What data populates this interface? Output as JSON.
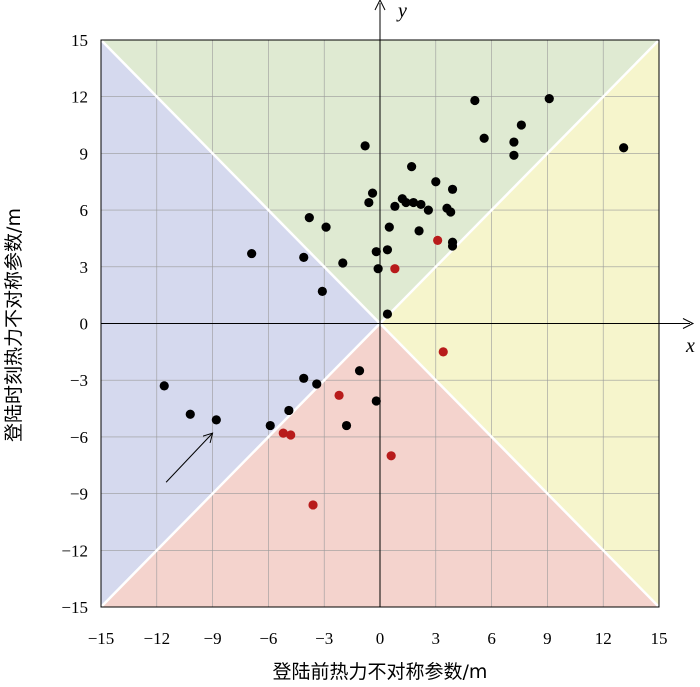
{
  "chart_data": {
    "type": "scatter",
    "title": "",
    "xlabel": "登陆前热力不对称参数/m",
    "ylabel": "登陆时刻热力不对称参数/m",
    "x_axis_var": "x",
    "y_axis_var": "y",
    "xlim": [
      -15,
      15
    ],
    "ylim": [
      -15,
      15
    ],
    "xticks": [
      -15,
      -12,
      -9,
      -6,
      -3,
      0,
      3,
      6,
      9,
      12,
      15
    ],
    "yticks": [
      -15,
      -12,
      -9,
      -6,
      -3,
      0,
      3,
      6,
      9,
      12,
      15
    ],
    "xtick_labels": [
      "−15",
      "−12",
      "−9",
      "−6",
      "−3",
      "0",
      "3",
      "6",
      "9",
      "12",
      "15"
    ],
    "ytick_labels": [
      "−15",
      "−12",
      "−9",
      "−6",
      "−3",
      "0",
      "3",
      "6",
      "9",
      "12",
      "15"
    ],
    "grid": true,
    "region_colors": {
      "top": "#dfead2",
      "right": "#f6f5cc",
      "bottom": "#f4d3cd",
      "left": "#d5d9ee"
    },
    "series": [
      {
        "color": "#000000",
        "points": [
          [
            5.1,
            11.8
          ],
          [
            9.1,
            11.9
          ],
          [
            7.6,
            10.5
          ],
          [
            5.6,
            9.8
          ],
          [
            7.2,
            9.6
          ],
          [
            7.2,
            8.9
          ],
          [
            13.1,
            9.3
          ],
          [
            -0.8,
            9.4
          ],
          [
            1.7,
            8.3
          ],
          [
            3.0,
            7.5
          ],
          [
            3.9,
            7.1
          ],
          [
            -0.4,
            6.9
          ],
          [
            -0.6,
            6.4
          ],
          [
            1.2,
            6.6
          ],
          [
            1.4,
            6.4
          ],
          [
            1.8,
            6.4
          ],
          [
            0.8,
            6.2
          ],
          [
            2.2,
            6.3
          ],
          [
            2.6,
            6.0
          ],
          [
            3.6,
            6.1
          ],
          [
            3.8,
            5.9
          ],
          [
            -3.8,
            5.6
          ],
          [
            -2.9,
            5.1
          ],
          [
            0.5,
            5.1
          ],
          [
            2.1,
            4.9
          ],
          [
            3.9,
            4.3
          ],
          [
            3.9,
            4.1
          ],
          [
            0.4,
            3.9
          ],
          [
            -0.2,
            3.8
          ],
          [
            -6.9,
            3.7
          ],
          [
            -4.1,
            3.5
          ],
          [
            -2.0,
            3.2
          ],
          [
            -0.1,
            2.9
          ],
          [
            -3.1,
            1.7
          ],
          [
            0.4,
            0.5
          ],
          [
            -11.6,
            -3.3
          ],
          [
            -10.2,
            -4.8
          ],
          [
            -8.8,
            -5.1
          ],
          [
            -4.1,
            -2.9
          ],
          [
            -3.4,
            -3.2
          ],
          [
            -1.1,
            -2.5
          ],
          [
            -4.9,
            -4.6
          ],
          [
            -5.9,
            -5.4
          ],
          [
            -1.8,
            -5.4
          ],
          [
            -0.2,
            -4.1
          ]
        ]
      },
      {
        "color": "#b81b1b",
        "points": [
          [
            3.1,
            4.4
          ],
          [
            0.8,
            2.9
          ],
          [
            3.4,
            -1.5
          ],
          [
            -2.2,
            -3.8
          ],
          [
            -5.2,
            -5.8
          ],
          [
            -4.8,
            -5.9
          ],
          [
            0.6,
            -7.0
          ],
          [
            -3.6,
            -9.6
          ]
        ]
      }
    ],
    "annotation": {
      "type": "arrow",
      "from": [
        -11.5,
        -8.4
      ],
      "to": [
        -9.0,
        -5.8
      ]
    }
  }
}
